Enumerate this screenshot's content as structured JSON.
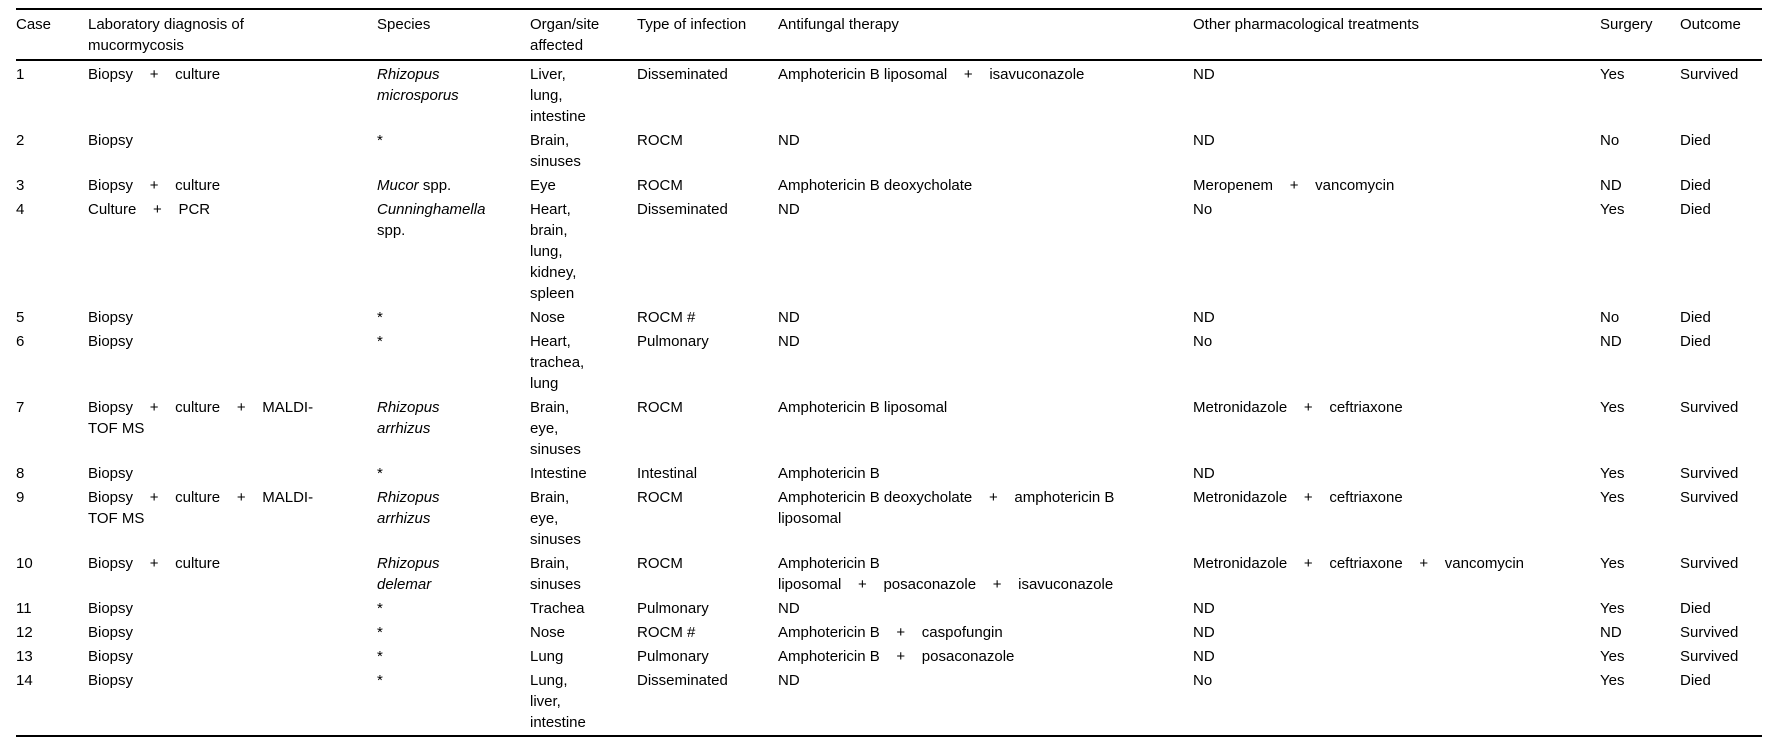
{
  "table": {
    "columns": [
      {
        "id": "case",
        "label": "Case"
      },
      {
        "id": "diagnosis",
        "label": "Laboratory diagnosis of\nmucormycosis"
      },
      {
        "id": "species",
        "label": "Species"
      },
      {
        "id": "organ",
        "label": "Organ/site\naffected"
      },
      {
        "id": "infection",
        "label": "Type of infection"
      },
      {
        "id": "antifungal",
        "label": "Antifungal therapy"
      },
      {
        "id": "other",
        "label": "Other pharmacological treatments"
      },
      {
        "id": "surgery",
        "label": "Surgery"
      },
      {
        "id": "outcome",
        "label": "Outcome"
      }
    ],
    "rows": [
      {
        "case": "1",
        "diagnosis": "Biopsy    +    culture",
        "species": [
          {
            "text": "Rhizopus\nmicrosporus",
            "italic": true
          }
        ],
        "organ": "Liver,\nlung,\nintestine",
        "infection": "Disseminated",
        "antifungal": "Amphotericin B liposomal    +    isavuconazole",
        "other": "ND",
        "surgery": "Yes",
        "outcome": "Survived"
      },
      {
        "case": "2",
        "diagnosis": "Biopsy",
        "species": [
          {
            "text": "*",
            "italic": false
          }
        ],
        "organ": "Brain,\nsinuses",
        "infection": "ROCM",
        "antifungal": "ND",
        "other": "ND",
        "surgery": "No",
        "outcome": "Died"
      },
      {
        "case": "3",
        "diagnosis": "Biopsy    +    culture",
        "species": [
          {
            "text": "Mucor",
            "italic": true
          },
          {
            "text": " spp.",
            "italic": false
          }
        ],
        "organ": "Eye",
        "infection": "ROCM",
        "antifungal": "Amphotericin B deoxycholate",
        "other": "Meropenem    +    vancomycin",
        "surgery": "ND",
        "outcome": "Died"
      },
      {
        "case": "4",
        "diagnosis": "Culture    +    PCR",
        "species": [
          {
            "text": "Cunninghamella",
            "italic": true
          },
          {
            "text": "\nspp.",
            "italic": false
          }
        ],
        "organ": "Heart,\nbrain,\nlung,\nkidney,\nspleen",
        "infection": "Disseminated",
        "antifungal": "ND",
        "other": "No",
        "surgery": "Yes",
        "outcome": "Died"
      },
      {
        "case": "5",
        "diagnosis": "Biopsy",
        "species": [
          {
            "text": "*",
            "italic": false
          }
        ],
        "organ": "Nose",
        "infection": "ROCM #",
        "antifungal": "ND",
        "other": "ND",
        "surgery": "No",
        "outcome": "Died"
      },
      {
        "case": "6",
        "diagnosis": "Biopsy",
        "species": [
          {
            "text": "*",
            "italic": false
          }
        ],
        "organ": "Heart,\ntrachea,\nlung",
        "infection": "Pulmonary",
        "antifungal": "ND",
        "other": "No",
        "surgery": "ND",
        "outcome": "Died"
      },
      {
        "case": "7",
        "diagnosis": "Biopsy    +    culture    +    MALDI-\nTOF MS",
        "species": [
          {
            "text": "Rhizopus\narrhizus",
            "italic": true
          }
        ],
        "organ": "Brain,\neye,\nsinuses",
        "infection": "ROCM",
        "antifungal": "Amphotericin B liposomal",
        "other": "Metronidazole    +    ceftriaxone",
        "surgery": "Yes",
        "outcome": "Survived"
      },
      {
        "case": "8",
        "diagnosis": "Biopsy",
        "species": [
          {
            "text": "*",
            "italic": false
          }
        ],
        "organ": "Intestine",
        "infection": "Intestinal",
        "antifungal": "Amphotericin B",
        "other": "ND",
        "surgery": "Yes",
        "outcome": "Survived"
      },
      {
        "case": "9",
        "diagnosis": "Biopsy    +    culture    +    MALDI-\nTOF MS",
        "species": [
          {
            "text": "Rhizopus\narrhizus",
            "italic": true
          }
        ],
        "organ": "Brain,\neye,\nsinuses",
        "infection": "ROCM",
        "antifungal": "Amphotericin B deoxycholate    +    amphotericin B\nliposomal",
        "other": "Metronidazole    +    ceftriaxone",
        "surgery": "Yes",
        "outcome": "Survived"
      },
      {
        "case": "10",
        "diagnosis": "Biopsy    +    culture",
        "species": [
          {
            "text": "Rhizopus\ndelemar",
            "italic": true
          }
        ],
        "organ": "Brain,\nsinuses",
        "infection": "ROCM",
        "antifungal": "Amphotericin B\nliposomal    +    posaconazole    +    isavuconazole",
        "other": "Metronidazole    +    ceftriaxone    +    vancomycin",
        "surgery": "Yes",
        "outcome": "Survived"
      },
      {
        "case": "11",
        "diagnosis": "Biopsy",
        "species": [
          {
            "text": "*",
            "italic": false
          }
        ],
        "organ": "Trachea",
        "infection": "Pulmonary",
        "antifungal": "ND",
        "other": "ND",
        "surgery": "Yes",
        "outcome": "Died"
      },
      {
        "case": "12",
        "diagnosis": "Biopsy",
        "species": [
          {
            "text": "*",
            "italic": false
          }
        ],
        "organ": "Nose",
        "infection": "ROCM #",
        "antifungal": "Amphotericin B    +    caspofungin",
        "other": "ND",
        "surgery": "ND",
        "outcome": "Survived"
      },
      {
        "case": "13",
        "diagnosis": "Biopsy",
        "species": [
          {
            "text": "*",
            "italic": false
          }
        ],
        "organ": "Lung",
        "infection": "Pulmonary",
        "antifungal": "Amphotericin B    +    posaconazole",
        "other": "ND",
        "surgery": "Yes",
        "outcome": "Survived"
      },
      {
        "case": "14",
        "diagnosis": "Biopsy",
        "species": [
          {
            "text": "*",
            "italic": false
          }
        ],
        "organ": "Lung,\nliver,\nintestine",
        "infection": "Disseminated",
        "antifungal": "ND",
        "other": "No",
        "surgery": "Yes",
        "outcome": "Died"
      }
    ]
  }
}
